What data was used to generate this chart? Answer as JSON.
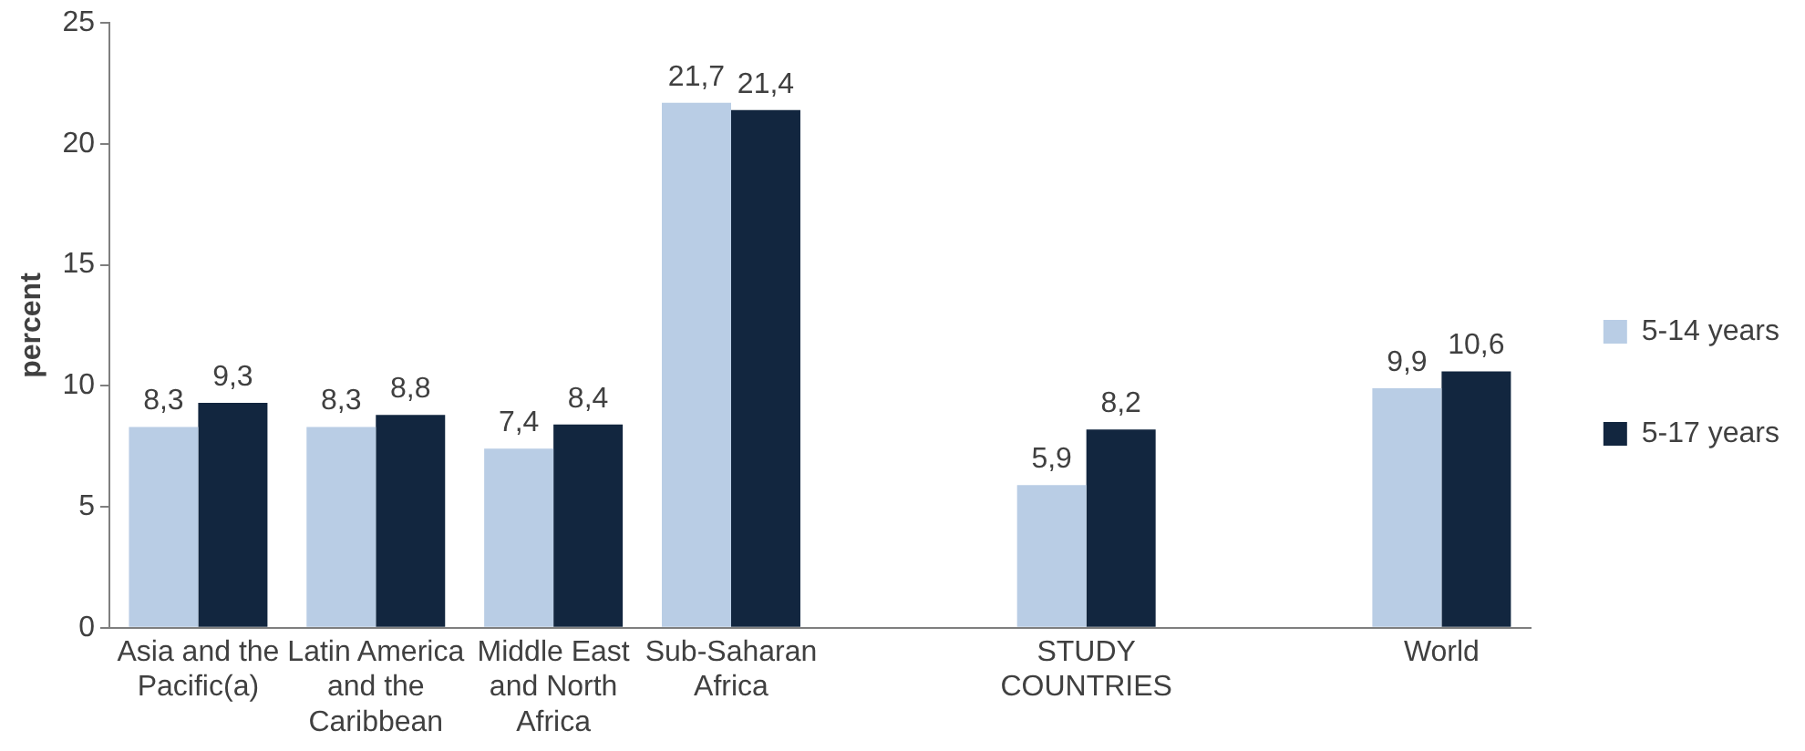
{
  "chart_data": {
    "type": "bar",
    "ylabel": "percent",
    "categories": [
      "Asia and the Pacific(a)",
      "Latin America and the Caribbean",
      "Middle East and North Africa",
      "Sub-Saharan Africa",
      null,
      "STUDY COUNTRIES",
      null,
      "World"
    ],
    "series": [
      {
        "name": "5-14 years",
        "color": "#b9cde5",
        "values": [
          8.3,
          8.3,
          7.4,
          21.7,
          null,
          5.9,
          null,
          9.9
        ],
        "value_labels": [
          "8,3",
          "8,3",
          "7,4",
          "21,7",
          null,
          "5,9",
          null,
          "9,9"
        ]
      },
      {
        "name": "5-17 years",
        "color": "#12263f",
        "values": [
          9.3,
          8.8,
          8.4,
          21.4,
          null,
          8.2,
          null,
          10.6
        ],
        "value_labels": [
          "9,3",
          "8,8",
          "8,4",
          "21,4",
          null,
          "8,2",
          null,
          "10,6"
        ]
      }
    ],
    "ylim": [
      0,
      25
    ],
    "yticks": [
      0,
      5,
      10,
      15,
      20,
      25
    ],
    "grid": false,
    "legend": "right"
  }
}
